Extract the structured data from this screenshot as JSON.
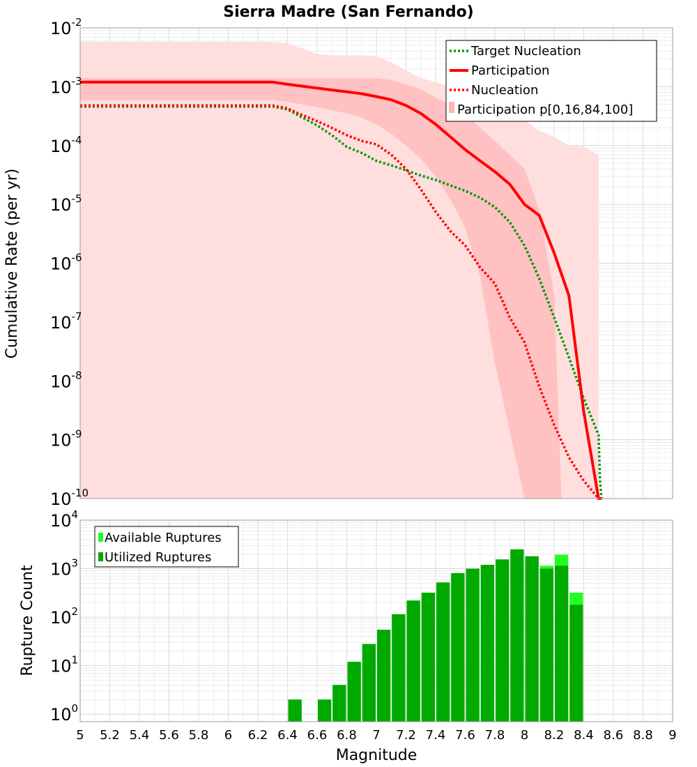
{
  "chart_data": [
    {
      "type": "line",
      "title": "Sierra Madre (San Fernando)",
      "xlabel": "",
      "ylabel": "Cumulative Rate (per yr)",
      "xlim": [
        5,
        9
      ],
      "ylim": [
        1e-10,
        0.01
      ],
      "yscale": "log",
      "y_ticks": [
        {
          "base": "10",
          "exp": "-10"
        },
        {
          "base": "10",
          "exp": "-9"
        },
        {
          "base": "10",
          "exp": "-8"
        },
        {
          "base": "10",
          "exp": "-7"
        },
        {
          "base": "10",
          "exp": "-6"
        },
        {
          "base": "10",
          "exp": "-5"
        },
        {
          "base": "10",
          "exp": "-4"
        },
        {
          "base": "10",
          "exp": "-3"
        },
        {
          "base": "10",
          "exp": "-2"
        }
      ],
      "grid": true,
      "legend_position": "top-right",
      "series": [
        {
          "name": "Target Nucleation",
          "color": "#009900",
          "style": "dotted",
          "x": [
            5.0,
            6.3,
            6.4,
            6.5,
            6.6,
            6.7,
            6.8,
            6.9,
            7.0,
            7.1,
            7.2,
            7.3,
            7.4,
            7.5,
            7.6,
            7.7,
            7.8,
            7.9,
            8.0,
            8.1,
            8.2,
            8.3,
            8.4,
            8.5,
            8.51,
            8.52
          ],
          "y": [
            0.00046,
            0.00046,
            0.00041,
            0.0003,
            0.00022,
            0.00015,
            9.5e-05,
            7.5e-05,
            5.5e-05,
            4.6e-05,
            3.8e-05,
            3.1e-05,
            2.6e-05,
            2.1e-05,
            1.7e-05,
            1.3e-05,
            9e-06,
            5e-06,
            2e-06,
            5.5e-07,
            1.2e-07,
            2.5e-08,
            5e-09,
            1.2e-09,
            2e-10,
            1e-10
          ]
        },
        {
          "name": "Participation",
          "color": "#ff0000",
          "style": "solid",
          "x": [
            5.0,
            6.3,
            6.4,
            6.5,
            6.6,
            6.7,
            6.8,
            6.9,
            7.0,
            7.1,
            7.2,
            7.3,
            7.4,
            7.5,
            7.6,
            7.7,
            7.8,
            7.9,
            8.0,
            8.1,
            8.2,
            8.3,
            8.4,
            8.5,
            8.51,
            8.52
          ],
          "y": [
            0.0012,
            0.0012,
            0.0011,
            0.00102,
            0.00095,
            0.00088,
            0.00082,
            0.00076,
            0.00068,
            0.0006,
            0.00048,
            0.00035,
            0.00023,
            0.00014,
            8.5e-05,
            5.5e-05,
            3.6e-05,
            2.2e-05,
            1e-05,
            6.5e-06,
            1.5e-06,
            2.8e-07,
            3e-09,
            1e-10,
            1e-10,
            1e-10
          ]
        },
        {
          "name": "Nucleation",
          "color": "#ff0000",
          "style": "dotted",
          "x": [
            5.0,
            6.3,
            6.4,
            6.5,
            6.6,
            6.7,
            6.8,
            6.9,
            7.0,
            7.1,
            7.2,
            7.3,
            7.4,
            7.5,
            7.6,
            7.7,
            7.8,
            7.9,
            8.0,
            8.1,
            8.2,
            8.3,
            8.4,
            8.5,
            8.51,
            8.52
          ],
          "y": [
            0.00048,
            0.00048,
            0.00043,
            0.00033,
            0.00026,
            0.0002,
            0.00015,
            0.00012,
            0.000105,
            7e-05,
            4e-05,
            1.8e-05,
            7.5e-06,
            3.5e-06,
            2e-06,
            8.5e-07,
            4.5e-07,
            1.2e-07,
            4.5e-08,
            8e-09,
            1.8e-09,
            5e-10,
            2e-10,
            1e-10,
            1e-10,
            1e-10
          ]
        }
      ],
      "bands": [
        {
          "name": "Participation p[0,16,84,100]",
          "color": "#ffb3b3",
          "x": [
            5.0,
            6.3,
            6.4,
            6.5,
            6.6,
            6.7,
            6.8,
            6.9,
            7.0,
            7.1,
            7.2,
            7.3,
            7.4,
            7.5,
            7.6,
            7.7,
            7.8,
            7.9,
            8.0,
            8.1,
            8.2,
            8.3,
            8.4,
            8.5
          ],
          "outer_low": [
            1e-10,
            1e-10,
            1e-10,
            1e-10,
            1e-10,
            1e-10,
            1e-10,
            1e-10,
            1e-10,
            1e-10,
            1e-10,
            1e-10,
            1e-10,
            1e-10,
            1e-10,
            1e-10,
            1e-10,
            1e-10,
            1e-10,
            1e-10,
            1e-10,
            1e-10,
            1e-10,
            1e-10
          ],
          "outer_high": [
            0.0058,
            0.0058,
            0.0055,
            0.0045,
            0.0036,
            0.0034,
            0.0034,
            0.0034,
            0.0033,
            0.0026,
            0.0019,
            0.0014,
            0.0012,
            0.001,
            0.00065,
            0.0005,
            0.00042,
            0.00033,
            0.00027,
            0.00018,
            0.00014,
            0.0001,
            9.5e-05,
            7e-05
          ],
          "inner_low": [
            0.0006,
            0.0006,
            0.00055,
            0.0005,
            0.00045,
            0.0004,
            0.00035,
            0.0003,
            0.00023,
            0.00016,
            0.0001,
            6e-05,
            3e-05,
            1.2e-05,
            4e-06,
            6e-07,
            2e-08,
            1e-10,
            1e-10,
            1e-10,
            1e-10
          ],
          "inner_high": [
            0.0014,
            0.0014,
            0.0014,
            0.0014,
            0.0014,
            0.0014,
            0.0014,
            0.0014,
            0.0014,
            0.0013,
            0.0011,
            0.0009,
            0.00065,
            0.0005,
            0.00033,
            0.0002,
            0.00012,
            4e-05,
            8e-06,
            3e-07,
            1e-10
          ],
          "inner_x": [
            5.0,
            6.3,
            6.4,
            6.5,
            6.6,
            6.7,
            6.8,
            6.9,
            7.0,
            7.1,
            7.2,
            7.3,
            7.4,
            7.5,
            7.6,
            7.7,
            7.8,
            8.0,
            8.1,
            8.2,
            8.25
          ]
        }
      ],
      "legend": [
        {
          "label": "Target Nucleation",
          "color": "#009900",
          "style": "dotted"
        },
        {
          "label": "Participation",
          "color": "#ff0000",
          "style": "solid"
        },
        {
          "label": "Nucleation",
          "color": "#ff0000",
          "style": "dotted"
        },
        {
          "label": "Participation p[0,16,84,100]",
          "color": "#ffb3b3",
          "style": "box"
        }
      ]
    },
    {
      "type": "bar",
      "title": "",
      "xlabel": "Magnitude",
      "ylabel": "Rupture Count",
      "xlim": [
        5,
        9
      ],
      "ylim": [
        0.7,
        10000
      ],
      "yscale": "log",
      "x_ticks": [
        "5",
        "5.2",
        "5.4",
        "5.6",
        "5.8",
        "6",
        "6.2",
        "6.4",
        "6.6",
        "6.8",
        "7",
        "7.2",
        "7.4",
        "7.6",
        "7.8",
        "8",
        "8.2",
        "8.4",
        "8.6",
        "8.8",
        "9"
      ],
      "y_ticks": [
        {
          "base": "10",
          "exp": "0"
        },
        {
          "base": "10",
          "exp": "1"
        },
        {
          "base": "10",
          "exp": "2"
        },
        {
          "base": "10",
          "exp": "3"
        },
        {
          "base": "10",
          "exp": "4"
        }
      ],
      "grid": true,
      "legend_position": "top-left",
      "bin_width": 0.1,
      "series": [
        {
          "name": "Available Ruptures",
          "color": "#22ff22",
          "x": [
            6.45,
            6.65,
            6.75,
            6.85,
            6.95,
            7.05,
            7.15,
            7.25,
            7.35,
            7.45,
            7.55,
            7.65,
            7.75,
            7.85,
            7.95,
            8.05,
            8.15,
            8.25,
            8.35
          ],
          "values": [
            2,
            2,
            4,
            12,
            28,
            55,
            115,
            220,
            320,
            520,
            810,
            1000,
            1200,
            1550,
            2500,
            1800,
            1150,
            1950,
            320
          ]
        },
        {
          "name": "Utilized Ruptures",
          "color": "#00aa00",
          "x": [
            6.45,
            6.65,
            6.75,
            6.85,
            6.95,
            7.05,
            7.15,
            7.25,
            7.35,
            7.45,
            7.55,
            7.65,
            7.75,
            7.85,
            7.95,
            8.05,
            8.15,
            8.25,
            8.35
          ],
          "values": [
            2,
            2,
            4,
            12,
            28,
            55,
            115,
            220,
            320,
            520,
            810,
            1000,
            1200,
            1550,
            2500,
            1800,
            1000,
            1150,
            180
          ]
        }
      ],
      "legend": [
        {
          "label": "Available Ruptures",
          "color": "#22ff22"
        },
        {
          "label": "Utilized Ruptures",
          "color": "#00aa00"
        }
      ]
    }
  ]
}
